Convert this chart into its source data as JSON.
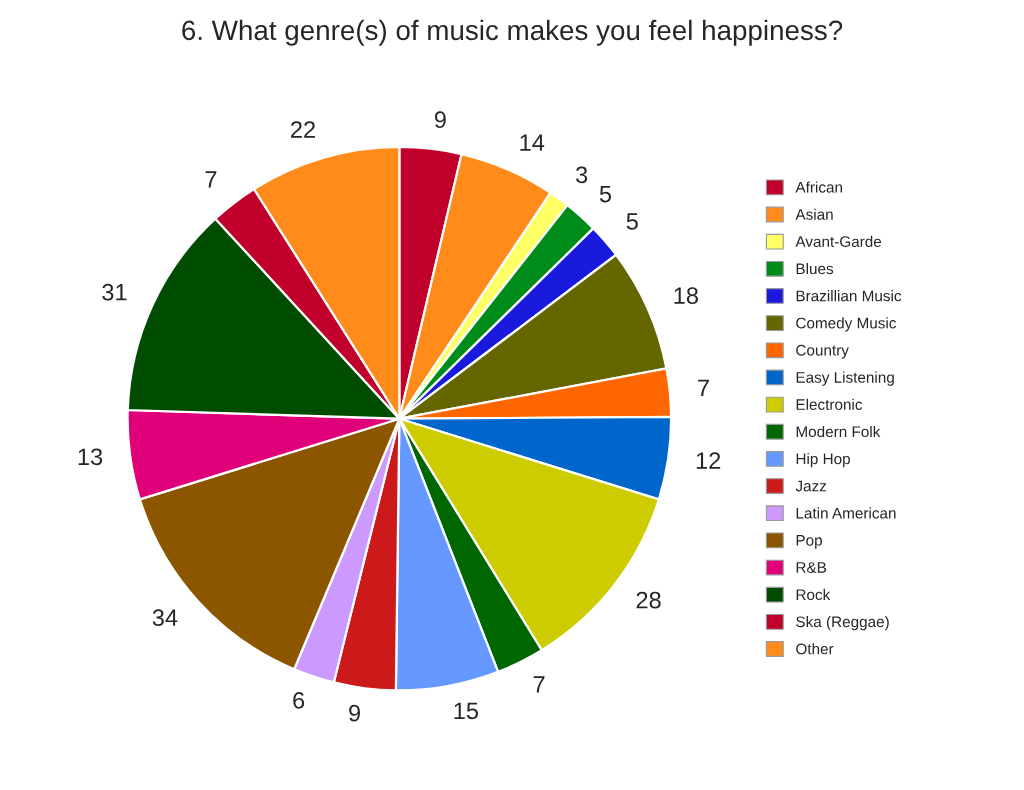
{
  "chart_data": {
    "type": "pie",
    "title": "6. What genre(s) of music makes you feel happiness?",
    "categories": [
      "African",
      "Asian",
      "Avant-Garde",
      "Blues",
      "Brazillian Music",
      "Comedy Music",
      "Country",
      "Easy Listening",
      "Electronic",
      "Modern Folk",
      "Hip Hop",
      "Jazz",
      "Latin American",
      "Pop",
      "R&B",
      "Rock",
      "Ska (Reggae)",
      "Other"
    ],
    "values": [
      9,
      14,
      3,
      5,
      5,
      18,
      7,
      12,
      28,
      7,
      15,
      9,
      6,
      34,
      13,
      31,
      7,
      22
    ],
    "colors": [
      "#c0002a",
      "#ff8c1a",
      "#ffff66",
      "#008c1a",
      "#1a1adc",
      "#666600",
      "#ff6600",
      "#0066cc",
      "#cccc00",
      "#006600",
      "#6699ff",
      "#cc1a1a",
      "#cc99ff",
      "#8c5500",
      "#e0007a",
      "#004c00",
      "#c0002a",
      "#ff8c1a"
    ],
    "data_labels": true,
    "legend": "right"
  }
}
